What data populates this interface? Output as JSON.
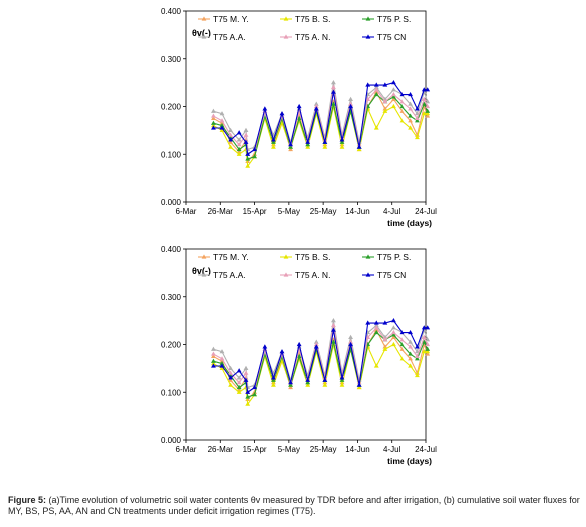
{
  "caption": {
    "label": "Figure 5:",
    "text": "(a)Time evolution of volumetric soil water contents θv measured by TDR before and after irrigation, (b) cumulative soil water fluxes for MY, BS, PS, AA, AN and CN treatments under deficit irrigation regimes (T75)."
  },
  "chart_data": [
    {
      "type": "line",
      "ylabel": "θv(-)",
      "xlabel": "time (days)",
      "ylim": [
        0,
        0.4
      ],
      "yticks": [
        "0.000",
        "0.100",
        "0.200",
        "0.300",
        "0.400"
      ],
      "xticks": [
        "6-Mar",
        "26-Mar",
        "15-Apr",
        "5-May",
        "25-May",
        "14-Jun",
        "4-Jul",
        "24-Jul"
      ],
      "legend_position": "top",
      "series": [
        {
          "name": "T75 M. Y.",
          "color": "#f4a460",
          "marker": "triangle",
          "x": [
            16,
            21,
            26,
            31,
            35,
            36,
            40,
            46,
            51,
            56,
            61,
            66,
            71,
            76,
            81,
            86,
            91,
            96,
            101,
            106,
            111,
            116,
            121,
            126,
            131,
            135,
            139,
            141
          ],
          "y": [
            0.175,
            0.165,
            0.125,
            0.105,
            0.13,
            0.085,
            0.1,
            0.185,
            0.12,
            0.17,
            0.11,
            0.18,
            0.12,
            0.195,
            0.12,
            0.21,
            0.12,
            0.195,
            0.11,
            0.2,
            0.23,
            0.195,
            0.215,
            0.19,
            0.17,
            0.14,
            0.2,
            0.18
          ]
        },
        {
          "name": "T75 B. S.",
          "color": "#e6e600",
          "marker": "triangle",
          "x": [
            16,
            21,
            26,
            31,
            35,
            36,
            40,
            46,
            51,
            56,
            61,
            66,
            71,
            76,
            81,
            86,
            91,
            96,
            101,
            106,
            111,
            116,
            121,
            126,
            131,
            135,
            139,
            141
          ],
          "y": [
            0.16,
            0.15,
            0.115,
            0.1,
            0.11,
            0.075,
            0.095,
            0.175,
            0.115,
            0.165,
            0.115,
            0.17,
            0.115,
            0.185,
            0.115,
            0.2,
            0.115,
            0.19,
            0.11,
            0.195,
            0.155,
            0.19,
            0.2,
            0.17,
            0.155,
            0.135,
            0.185,
            0.185
          ]
        },
        {
          "name": "T75 P. S.",
          "color": "#2ca02c",
          "marker": "triangle",
          "x": [
            16,
            21,
            26,
            31,
            35,
            36,
            40,
            46,
            51,
            56,
            61,
            66,
            71,
            76,
            81,
            86,
            91,
            96,
            101,
            106,
            111,
            116,
            121,
            126,
            131,
            135,
            139,
            141
          ],
          "y": [
            0.165,
            0.16,
            0.135,
            0.11,
            0.12,
            0.09,
            0.095,
            0.18,
            0.125,
            0.175,
            0.115,
            0.175,
            0.12,
            0.19,
            0.125,
            0.205,
            0.125,
            0.19,
            0.115,
            0.2,
            0.225,
            0.21,
            0.22,
            0.2,
            0.18,
            0.17,
            0.205,
            0.19
          ]
        },
        {
          "name": "T75 A.A.",
          "color": "#b0b0b0",
          "marker": "triangle",
          "x": [
            16,
            21,
            26,
            31,
            35,
            36,
            40,
            46,
            51,
            56,
            61,
            66,
            71,
            76,
            81,
            86,
            91,
            96,
            101,
            106,
            111,
            116,
            121,
            126,
            131,
            135,
            139,
            141
          ],
          "y": [
            0.19,
            0.185,
            0.15,
            0.13,
            0.15,
            0.11,
            0.115,
            0.185,
            0.14,
            0.185,
            0.125,
            0.195,
            0.135,
            0.205,
            0.135,
            0.25,
            0.14,
            0.215,
            0.125,
            0.225,
            0.24,
            0.215,
            0.235,
            0.225,
            0.205,
            0.185,
            0.23,
            0.21
          ]
        },
        {
          "name": "T75 A. N.",
          "color": "#e8a0b8",
          "marker": "triangle",
          "x": [
            16,
            21,
            26,
            31,
            35,
            36,
            40,
            46,
            51,
            56,
            61,
            66,
            71,
            76,
            81,
            86,
            91,
            96,
            101,
            106,
            111,
            116,
            121,
            126,
            131,
            135,
            139,
            141
          ],
          "y": [
            0.18,
            0.17,
            0.14,
            0.12,
            0.14,
            0.1,
            0.11,
            0.19,
            0.13,
            0.18,
            0.12,
            0.19,
            0.13,
            0.2,
            0.13,
            0.24,
            0.135,
            0.205,
            0.12,
            0.215,
            0.235,
            0.21,
            0.225,
            0.21,
            0.195,
            0.175,
            0.215,
            0.2
          ]
        },
        {
          "name": "T75 CN",
          "color": "#0000cc",
          "marker": "triangle",
          "x": [
            16,
            21,
            26,
            31,
            35,
            36,
            40,
            46,
            51,
            56,
            61,
            66,
            71,
            76,
            81,
            86,
            91,
            96,
            101,
            106,
            111,
            116,
            121,
            126,
            131,
            135,
            139,
            141
          ],
          "y": [
            0.155,
            0.155,
            0.13,
            0.145,
            0.125,
            0.1,
            0.11,
            0.195,
            0.13,
            0.185,
            0.12,
            0.2,
            0.125,
            0.195,
            0.125,
            0.23,
            0.13,
            0.2,
            0.115,
            0.245,
            0.245,
            0.245,
            0.25,
            0.225,
            0.225,
            0.195,
            0.235,
            0.235
          ]
        }
      ]
    },
    {
      "type": "line",
      "ylabel": "θv(-)",
      "xlabel": "time (days)",
      "ylim": [
        0,
        0.4
      ],
      "yticks": [
        "0.000",
        "0.100",
        "0.200",
        "0.300",
        "0.400"
      ],
      "xticks": [
        "6-Mar",
        "26-Mar",
        "15-Apr",
        "5-May",
        "25-May",
        "14-Jun",
        "4-Jul",
        "24-Jul"
      ],
      "legend_position": "top",
      "series": [
        {
          "name": "T75 M. Y.",
          "color": "#f4a460",
          "marker": "triangle",
          "x": [
            16,
            21,
            26,
            31,
            35,
            36,
            40,
            46,
            51,
            56,
            61,
            66,
            71,
            76,
            81,
            86,
            91,
            96,
            101,
            106,
            111,
            116,
            121,
            126,
            131,
            135,
            139,
            141
          ],
          "y": [
            0.175,
            0.165,
            0.125,
            0.105,
            0.13,
            0.085,
            0.1,
            0.185,
            0.12,
            0.17,
            0.11,
            0.18,
            0.12,
            0.195,
            0.12,
            0.21,
            0.12,
            0.195,
            0.11,
            0.2,
            0.23,
            0.195,
            0.215,
            0.19,
            0.17,
            0.14,
            0.2,
            0.18
          ]
        },
        {
          "name": "T75 B. S.",
          "color": "#e6e600",
          "marker": "triangle",
          "x": [
            16,
            21,
            26,
            31,
            35,
            36,
            40,
            46,
            51,
            56,
            61,
            66,
            71,
            76,
            81,
            86,
            91,
            96,
            101,
            106,
            111,
            116,
            121,
            126,
            131,
            135,
            139,
            141
          ],
          "y": [
            0.16,
            0.15,
            0.115,
            0.1,
            0.11,
            0.075,
            0.095,
            0.175,
            0.115,
            0.165,
            0.115,
            0.17,
            0.115,
            0.185,
            0.115,
            0.2,
            0.115,
            0.19,
            0.11,
            0.195,
            0.155,
            0.19,
            0.2,
            0.17,
            0.155,
            0.135,
            0.185,
            0.185
          ]
        },
        {
          "name": "T75 P. S.",
          "color": "#2ca02c",
          "marker": "triangle",
          "x": [
            16,
            21,
            26,
            31,
            35,
            36,
            40,
            46,
            51,
            56,
            61,
            66,
            71,
            76,
            81,
            86,
            91,
            96,
            101,
            106,
            111,
            116,
            121,
            126,
            131,
            135,
            139,
            141
          ],
          "y": [
            0.165,
            0.16,
            0.135,
            0.11,
            0.12,
            0.09,
            0.095,
            0.18,
            0.125,
            0.175,
            0.115,
            0.175,
            0.12,
            0.19,
            0.125,
            0.205,
            0.125,
            0.19,
            0.115,
            0.2,
            0.225,
            0.21,
            0.22,
            0.2,
            0.18,
            0.17,
            0.205,
            0.19
          ]
        },
        {
          "name": "T75 A.A.",
          "color": "#b0b0b0",
          "marker": "triangle",
          "x": [
            16,
            21,
            26,
            31,
            35,
            36,
            40,
            46,
            51,
            56,
            61,
            66,
            71,
            76,
            81,
            86,
            91,
            96,
            101,
            106,
            111,
            116,
            121,
            126,
            131,
            135,
            139,
            141
          ],
          "y": [
            0.19,
            0.185,
            0.15,
            0.13,
            0.15,
            0.11,
            0.115,
            0.185,
            0.14,
            0.185,
            0.125,
            0.195,
            0.135,
            0.205,
            0.135,
            0.25,
            0.14,
            0.215,
            0.125,
            0.225,
            0.24,
            0.215,
            0.235,
            0.225,
            0.205,
            0.185,
            0.23,
            0.21
          ]
        },
        {
          "name": "T75 A. N.",
          "color": "#e8a0b8",
          "marker": "triangle",
          "x": [
            16,
            21,
            26,
            31,
            35,
            36,
            40,
            46,
            51,
            56,
            61,
            66,
            71,
            76,
            81,
            86,
            91,
            96,
            101,
            106,
            111,
            116,
            121,
            126,
            131,
            135,
            139,
            141
          ],
          "y": [
            0.18,
            0.17,
            0.14,
            0.12,
            0.14,
            0.1,
            0.11,
            0.19,
            0.13,
            0.18,
            0.12,
            0.19,
            0.13,
            0.2,
            0.13,
            0.24,
            0.135,
            0.205,
            0.12,
            0.215,
            0.235,
            0.21,
            0.225,
            0.21,
            0.195,
            0.175,
            0.215,
            0.2
          ]
        },
        {
          "name": "T75 CN",
          "color": "#0000cc",
          "marker": "triangle",
          "x": [
            16,
            21,
            26,
            31,
            35,
            36,
            40,
            46,
            51,
            56,
            61,
            66,
            71,
            76,
            81,
            86,
            91,
            96,
            101,
            106,
            111,
            116,
            121,
            126,
            131,
            135,
            139,
            141
          ],
          "y": [
            0.155,
            0.155,
            0.13,
            0.145,
            0.125,
            0.1,
            0.11,
            0.195,
            0.13,
            0.185,
            0.12,
            0.2,
            0.125,
            0.195,
            0.125,
            0.23,
            0.13,
            0.2,
            0.115,
            0.245,
            0.245,
            0.245,
            0.25,
            0.225,
            0.225,
            0.195,
            0.235,
            0.235
          ]
        }
      ]
    }
  ]
}
